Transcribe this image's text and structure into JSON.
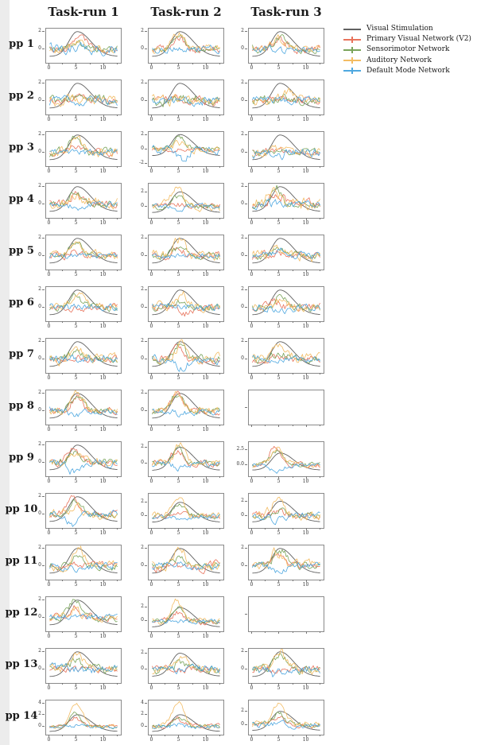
{
  "figure": {
    "background": "#ffffff",
    "left_band_color": "#ececec"
  },
  "columns": [
    "Task-run 1",
    "Task-run 2",
    "Task-run 3"
  ],
  "row_labels": [
    "pp 1",
    "pp 2",
    "pp 3",
    "pp 4",
    "pp 5",
    "pp 6",
    "pp 7",
    "pp 8",
    "pp 9",
    "pp 10",
    "pp 11",
    "pp 12",
    "pp 13",
    "pp 14"
  ],
  "legend": {
    "items": [
      {
        "label": "Visual Stimulation",
        "color": "#616161",
        "marker": "line"
      },
      {
        "label": "Primary Visual Network (V2)",
        "color": "#e8735c",
        "marker": "errorbar"
      },
      {
        "label": "Sensorimotor Network",
        "color": "#7aa45a",
        "marker": "errorbar"
      },
      {
        "label": "Auditory Network",
        "color": "#f3bc63",
        "marker": "errorbar"
      },
      {
        "label": "Default Mode Network",
        "color": "#4fa8e0",
        "marker": "errorbar"
      }
    ]
  },
  "chart_data": {
    "type": "line",
    "grid": "14 rows (participants pp 1..pp 14) x 3 columns (Task-run 1..3)",
    "x_range": [
      0,
      12.5
    ],
    "x_ticks_labeled": [
      0,
      5,
      10
    ],
    "x_minor_ticks": [
      2.5,
      7.5,
      12.5
    ],
    "series_order": [
      "Visual Stimulation",
      "Primary Visual Network (V2)",
      "Sensorimotor Network",
      "Auditory Network",
      "Default Mode Network"
    ],
    "colors": {
      "stimulus": "#616161",
      "v2": "#e8735c",
      "sensorimotor": "#7aa45a",
      "auditory": "#f3bc63",
      "dmn": "#4fa8e0"
    },
    "stimulus_model": {
      "description": "smooth z-scored stimulation curve, same in every panel",
      "baseline": -0.85,
      "peak": 2.05,
      "peak_x": 5.1,
      "rise_sd": 1.55,
      "fall_sd": 2.5
    },
    "default_ylim": [
      -1.6,
      2.4
    ],
    "default_yticks": [
      [
        0,
        "0"
      ],
      [
        2,
        "2"
      ]
    ],
    "network_model": "each network series = bump(peak amp a at time mu, sd ~1.05) + AR noise of sigma n; values estimated from the plot",
    "cells": [
      [
        {
          "networks": [
            [
              1.9,
              0.3,
              5.6
            ],
            [
              0.7,
              0.3,
              5.0
            ],
            [
              1.0,
              0.3,
              5.2
            ],
            [
              0.1,
              0.45,
              5.0
            ]
          ]
        },
        {
          "networks": [
            [
              1.5,
              0.3,
              4.8
            ],
            [
              1.7,
              0.25,
              4.9
            ],
            [
              2.0,
              0.35,
              4.9
            ],
            [
              0.0,
              0.3,
              5.0
            ]
          ]
        },
        {
          "networks": [
            [
              1.2,
              0.35,
              5.0
            ],
            [
              1.3,
              0.3,
              5.1
            ],
            [
              1.4,
              0.35,
              4.8
            ],
            [
              -0.2,
              0.3,
              5.0
            ]
          ]
        }
      ],
      [
        {
          "networks": [
            [
              0.4,
              0.3,
              5.0
            ],
            [
              0.5,
              0.4,
              5.0
            ],
            [
              0.6,
              0.45,
              6.5
            ],
            [
              0.0,
              0.35,
              5.0
            ]
          ]
        },
        {
          "networks": [
            [
              0.4,
              0.35,
              4.5
            ],
            [
              0.2,
              0.45,
              5.0
            ],
            [
              0.3,
              0.45,
              5.0
            ],
            [
              0.1,
              0.4,
              5.0
            ]
          ]
        },
        {
          "networks": [
            [
              0.3,
              0.3,
              5.0
            ],
            [
              0.4,
              0.4,
              5.0
            ],
            [
              0.8,
              0.45,
              7.0
            ],
            [
              0.2,
              0.35,
              5.0
            ]
          ]
        }
      ],
      [
        {
          "networks": [
            [
              0.5,
              0.3,
              4.6
            ],
            [
              2.0,
              0.35,
              4.7
            ],
            [
              1.9,
              0.4,
              4.8
            ],
            [
              0.2,
              0.3,
              5.0
            ]
          ]
        },
        {
          "ylim": [
            -2.3,
            2.4
          ],
          "yticks": [
            [
              -2,
              "-2"
            ],
            [
              0,
              "0"
            ],
            [
              2,
              "2"
            ]
          ],
          "networks": [
            [
              0.1,
              0.2,
              5.0
            ],
            [
              1.5,
              0.3,
              5.1
            ],
            [
              0.8,
              0.35,
              5.0
            ],
            [
              -1.6,
              0.4,
              5.6
            ]
          ]
        },
        {
          "networks": [
            [
              0.3,
              0.3,
              5.0
            ],
            [
              0.3,
              0.3,
              5.0
            ],
            [
              0.4,
              0.35,
              5.0
            ],
            [
              -0.3,
              0.45,
              1.5
            ]
          ]
        }
      ],
      [
        {
          "networks": [
            [
              1.2,
              0.35,
              4.8
            ],
            [
              1.6,
              0.3,
              4.9
            ],
            [
              1.4,
              0.5,
              4.5
            ],
            [
              -0.3,
              0.3,
              5.0
            ]
          ]
        },
        {
          "ylim": [
            -1.6,
            3.2
          ],
          "networks": [
            [
              0.2,
              0.3,
              5.0
            ],
            [
              1.4,
              0.3,
              4.7
            ],
            [
              2.8,
              0.4,
              4.5
            ],
            [
              -0.5,
              0.25,
              5.0
            ]
          ]
        },
        {
          "networks": [
            [
              1.4,
              0.4,
              4.5
            ],
            [
              2.0,
              0.35,
              4.3
            ],
            [
              1.5,
              0.55,
              4.0
            ],
            [
              0.0,
              0.35,
              5.0
            ]
          ]
        }
      ],
      [
        {
          "networks": [
            [
              0.5,
              0.3,
              5.0
            ],
            [
              1.8,
              0.3,
              4.9
            ],
            [
              2.0,
              0.4,
              4.9
            ],
            [
              0.0,
              0.3,
              5.0
            ]
          ]
        },
        {
          "networks": [
            [
              0.8,
              0.3,
              5.0
            ],
            [
              1.0,
              0.3,
              5.1
            ],
            [
              2.0,
              0.45,
              5.2
            ],
            [
              0.0,
              0.25,
              5.0
            ]
          ]
        },
        {
          "networks": [
            [
              0.3,
              0.35,
              5.0
            ],
            [
              0.9,
              0.3,
              5.0
            ],
            [
              0.9,
              0.45,
              5.0
            ],
            [
              0.8,
              0.3,
              5.2
            ]
          ]
        }
      ],
      [
        {
          "networks": [
            [
              -0.3,
              0.3,
              6.5
            ],
            [
              1.2,
              0.3,
              5.0
            ],
            [
              1.9,
              0.35,
              5.1
            ],
            [
              0.1,
              0.3,
              5.0
            ]
          ]
        },
        {
          "networks": [
            [
              -0.7,
              0.35,
              6.5
            ],
            [
              0.6,
              0.3,
              5.0
            ],
            [
              1.5,
              0.4,
              5.5
            ],
            [
              0.5,
              0.35,
              3.0
            ]
          ]
        },
        {
          "networks": [
            [
              0.8,
              0.35,
              4.0
            ],
            [
              1.2,
              0.35,
              5.0
            ],
            [
              0.9,
              0.4,
              5.5
            ],
            [
              -0.4,
              0.35,
              5.0
            ]
          ]
        }
      ],
      [
        {
          "networks": [
            [
              0.1,
              0.3,
              5.0
            ],
            [
              0.9,
              0.35,
              5.0
            ],
            [
              1.5,
              0.45,
              5.2
            ],
            [
              -0.1,
              0.35,
              5.0
            ]
          ]
        },
        {
          "networks": [
            [
              1.2,
              0.35,
              4.6
            ],
            [
              1.9,
              0.35,
              5.0
            ],
            [
              1.8,
              0.4,
              5.3
            ],
            [
              -1.2,
              0.35,
              5.3
            ]
          ]
        },
        {
          "networks": [
            [
              0.2,
              0.3,
              5.0
            ],
            [
              0.9,
              0.35,
              5.0
            ],
            [
              1.9,
              0.45,
              5.0
            ],
            [
              -0.2,
              0.3,
              5.0
            ]
          ]
        }
      ],
      [
        {
          "networks": [
            [
              1.6,
              0.35,
              5.0
            ],
            [
              1.8,
              0.3,
              5.1
            ],
            [
              2.1,
              0.35,
              5.1
            ],
            [
              -0.4,
              0.3,
              5.0
            ]
          ]
        },
        {
          "networks": [
            [
              2.1,
              0.3,
              4.5
            ],
            [
              1.9,
              0.3,
              4.6
            ],
            [
              2.0,
              0.35,
              4.5
            ],
            [
              -0.3,
              0.3,
              5.0
            ]
          ]
        },
        {
          "empty": true
        }
      ],
      [
        {
          "networks": [
            [
              1.9,
              0.3,
              4.5
            ],
            [
              1.2,
              0.3,
              4.8
            ],
            [
              1.1,
              0.35,
              4.6
            ],
            [
              -1.0,
              0.35,
              4.2
            ]
          ]
        },
        {
          "ylim": [
            -1.6,
            2.7
          ],
          "networks": [
            [
              1.9,
              0.3,
              4.7
            ],
            [
              1.8,
              0.3,
              4.9
            ],
            [
              2.3,
              0.35,
              5.2
            ],
            [
              -0.5,
              0.3,
              5.0
            ]
          ]
        },
        {
          "ylim": [
            -1.9,
            3.9
          ],
          "yticks": [
            [
              0,
              "0.0"
            ],
            [
              2.5,
              "2.5"
            ]
          ],
          "networks": [
            [
              3.2,
              0.3,
              4.2
            ],
            [
              2.4,
              0.3,
              4.5
            ],
            [
              2.9,
              0.35,
              4.6
            ],
            [
              -1.2,
              0.3,
              4.6
            ]
          ]
        }
      ],
      [
        {
          "networks": [
            [
              1.8,
              0.3,
              4.4
            ],
            [
              1.6,
              0.3,
              4.8
            ],
            [
              1.2,
              0.4,
              4.9
            ],
            [
              -1.3,
              0.3,
              4.4
            ]
          ]
        },
        {
          "ylim": [
            -1.7,
            3.3
          ],
          "networks": [
            [
              0.8,
              0.3,
              5.0
            ],
            [
              1.7,
              0.3,
              4.9
            ],
            [
              2.9,
              0.4,
              5.0
            ],
            [
              -0.6,
              0.3,
              5.0
            ]
          ]
        },
        {
          "ylim": [
            -1.7,
            3.1
          ],
          "networks": [
            [
              0.5,
              0.35,
              5.0
            ],
            [
              1.0,
              0.3,
              5.0
            ],
            [
              2.7,
              0.45,
              4.7
            ],
            [
              -0.8,
              0.35,
              4.2
            ]
          ]
        }
      ],
      [
        {
          "networks": [
            [
              0.3,
              0.3,
              5.0
            ],
            [
              1.4,
              0.3,
              5.3
            ],
            [
              1.9,
              0.4,
              5.5
            ],
            [
              -0.5,
              0.3,
              5.5
            ]
          ]
        },
        {
          "networks": [
            [
              -0.6,
              0.4,
              5.5
            ],
            [
              1.0,
              0.3,
              5.2
            ],
            [
              1.9,
              0.4,
              5.1
            ],
            [
              0.2,
              0.3,
              5.0
            ]
          ]
        },
        {
          "networks": [
            [
              1.0,
              0.3,
              5.0
            ],
            [
              2.0,
              0.35,
              5.1
            ],
            [
              1.5,
              0.45,
              4.5
            ],
            [
              -0.6,
              0.3,
              4.8
            ]
          ]
        }
      ],
      [
        {
          "networks": [
            [
              1.2,
              0.3,
              4.8
            ],
            [
              2.0,
              0.3,
              4.7
            ],
            [
              1.0,
              0.35,
              4.6
            ],
            [
              0.1,
              0.3,
              5.0
            ]
          ]
        },
        {
          "ylim": [
            -1.5,
            3.6
          ],
          "networks": [
            [
              1.3,
              0.3,
              4.7
            ],
            [
              1.9,
              0.3,
              4.6
            ],
            [
              3.0,
              0.35,
              4.4
            ],
            [
              0.0,
              0.25,
              5.0
            ]
          ]
        },
        {
          "empty": true
        }
      ],
      [
        {
          "networks": [
            [
              0.1,
              0.25,
              5.0
            ],
            [
              1.0,
              0.4,
              5.0
            ],
            [
              2.0,
              0.4,
              5.1
            ],
            [
              0.2,
              0.4,
              4.0
            ]
          ]
        },
        {
          "ylim": [
            -1.7,
            2.6
          ],
          "networks": [
            [
              -0.2,
              0.3,
              5.0
            ],
            [
              0.9,
              0.4,
              5.5
            ],
            [
              1.7,
              0.4,
              5.2
            ],
            [
              0.3,
              0.35,
              3.0
            ]
          ]
        },
        {
          "networks": [
            [
              -0.4,
              0.3,
              4.5
            ],
            [
              1.8,
              0.35,
              5.2
            ],
            [
              2.2,
              0.4,
              5.0
            ],
            [
              -0.7,
              0.35,
              4.0
            ]
          ]
        }
      ],
      [
        {
          "ylim": [
            -1.4,
            4.5
          ],
          "yticks": [
            [
              0,
              "0"
            ],
            [
              2,
              "2"
            ],
            [
              4,
              "4"
            ]
          ],
          "networks": [
            [
              1.5,
              0.25,
              4.6
            ],
            [
              2.2,
              0.25,
              4.8
            ],
            [
              4.0,
              0.3,
              5.0
            ],
            [
              0.2,
              0.25,
              5.0
            ]
          ]
        },
        {
          "ylim": [
            -1.4,
            4.5
          ],
          "yticks": [
            [
              0,
              "0"
            ],
            [
              2,
              "2"
            ],
            [
              4,
              "4"
            ]
          ],
          "networks": [
            [
              1.2,
              0.3,
              4.9
            ],
            [
              1.6,
              0.25,
              4.9
            ],
            [
              4.2,
              0.3,
              4.8
            ],
            [
              0.4,
              0.3,
              5.0
            ]
          ]
        },
        {
          "ylim": [
            -1.5,
            3.7
          ],
          "networks": [
            [
              1.0,
              0.3,
              5.0
            ],
            [
              1.9,
              0.3,
              4.9
            ],
            [
              3.2,
              0.35,
              5.0
            ],
            [
              0.3,
              0.35,
              5.0
            ]
          ]
        }
      ]
    ]
  }
}
